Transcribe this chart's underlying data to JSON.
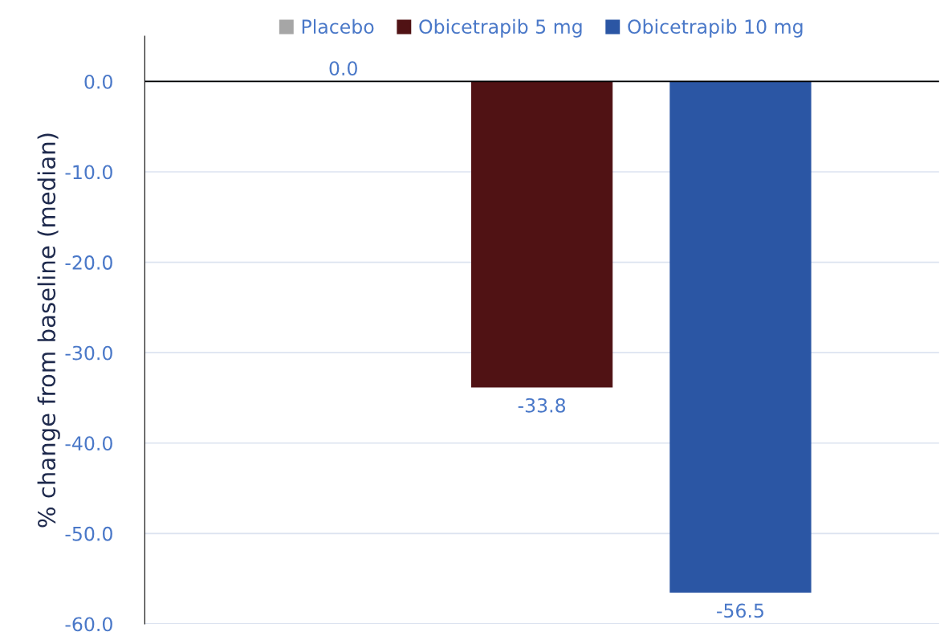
{
  "chart_data": {
    "type": "bar",
    "ylabel": "% change from baseline (median)",
    "categories": [
      null
    ],
    "series": [
      {
        "name": "Placebo",
        "color": "#a6a6a6",
        "values": [
          0.0
        ],
        "value_labels": [
          "0.0"
        ]
      },
      {
        "name": "Obicetrapib 5 mg",
        "color": "#501214",
        "values": [
          -33.8
        ],
        "value_labels": [
          "-33.8"
        ]
      },
      {
        "name": "Obicetrapib 10 mg",
        "color": "#2b56a4",
        "values": [
          -56.5
        ],
        "value_labels": [
          "-56.5"
        ]
      }
    ],
    "ylim": [
      -60,
      5
    ],
    "yticks": [
      {
        "value": 0,
        "label": "0.0"
      },
      {
        "value": -10,
        "label": "-10.0"
      },
      {
        "value": -20,
        "label": "-20.0"
      },
      {
        "value": -30,
        "label": "-30.0"
      },
      {
        "value": -40,
        "label": "-40.0"
      },
      {
        "value": -50,
        "label": "-50.0"
      },
      {
        "value": -60,
        "label": "-60.0"
      }
    ],
    "grid": "y",
    "legend": "top"
  }
}
